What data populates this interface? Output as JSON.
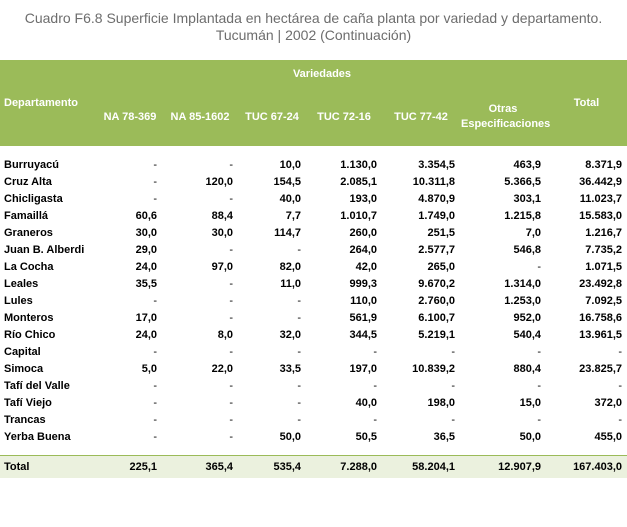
{
  "title_line1": "Cuadro F6.8 Superficie Implantada  en hectárea de caña planta por variedad y departamento.",
  "title_line2": "Tucumán | 2002 (Continuación)",
  "header": {
    "departamento": "Departamento",
    "variedades": "Variedades",
    "columns": [
      "NA 78-369",
      "NA 85-1602",
      "TUC 67-24",
      "TUC 72-16",
      "TUC 77-42",
      "Otras Especificaciones",
      "Total"
    ]
  },
  "rows": [
    {
      "dept": "Burruyacú",
      "v": [
        "-",
        "-",
        "10,0",
        "1.130,0",
        "3.354,5",
        "463,9",
        "8.371,9"
      ]
    },
    {
      "dept": "Cruz Alta",
      "v": [
        "-",
        "120,0",
        "154,5",
        "2.085,1",
        "10.311,8",
        "5.366,5",
        "36.442,9"
      ]
    },
    {
      "dept": "Chicligasta",
      "v": [
        "-",
        "-",
        "40,0",
        "193,0",
        "4.870,9",
        "303,1",
        "11.023,7"
      ]
    },
    {
      "dept": "Famaillá",
      "v": [
        "60,6",
        "88,4",
        "7,7",
        "1.010,7",
        "1.749,0",
        "1.215,8",
        "15.583,0"
      ]
    },
    {
      "dept": "Graneros",
      "v": [
        "30,0",
        "30,0",
        "114,7",
        "260,0",
        "251,5",
        "7,0",
        "1.216,7"
      ]
    },
    {
      "dept": "Juan B. Alberdi",
      "v": [
        "29,0",
        "-",
        "-",
        "264,0",
        "2.577,7",
        "546,8",
        "7.735,2"
      ]
    },
    {
      "dept": "La Cocha",
      "v": [
        "24,0",
        "97,0",
        "82,0",
        "42,0",
        "265,0",
        "-",
        "1.071,5"
      ]
    },
    {
      "dept": "Leales",
      "v": [
        "35,5",
        "-",
        "11,0",
        "999,3",
        "9.670,2",
        "1.314,0",
        "23.492,8"
      ]
    },
    {
      "dept": "Lules",
      "v": [
        "-",
        "-",
        "-",
        "110,0",
        "2.760,0",
        "1.253,0",
        "7.092,5"
      ]
    },
    {
      "dept": "Monteros",
      "v": [
        "17,0",
        "-",
        "-",
        "561,9",
        "6.100,7",
        "952,0",
        "16.758,6"
      ]
    },
    {
      "dept": "Río Chico",
      "v": [
        "24,0",
        "8,0",
        "32,0",
        "344,5",
        "5.219,1",
        "540,4",
        "13.961,5"
      ]
    },
    {
      "dept": "Capital",
      "v": [
        "-",
        "-",
        "-",
        "-",
        "-",
        "-",
        "-"
      ]
    },
    {
      "dept": "Simoca",
      "v": [
        "5,0",
        "22,0",
        "33,5",
        "197,0",
        "10.839,2",
        "880,4",
        "23.825,7"
      ]
    },
    {
      "dept": "Tafí del Valle",
      "v": [
        "-",
        "-",
        "-",
        "-",
        "-",
        "-",
        "-"
      ]
    },
    {
      "dept": "Tafí Viejo",
      "v": [
        "-",
        "-",
        "-",
        "40,0",
        "198,0",
        "15,0",
        "372,0"
      ]
    },
    {
      "dept": "Trancas",
      "v": [
        "-",
        "-",
        "-",
        "-",
        "-",
        "-",
        "-"
      ]
    },
    {
      "dept": "Yerba Buena",
      "v": [
        "-",
        "-",
        "50,0",
        "50,5",
        "36,5",
        "50,0",
        "455,0"
      ]
    }
  ],
  "total": {
    "dept": "Total",
    "v": [
      "225,1",
      "365,4",
      "535,4",
      "7.288,0",
      "58.204,1",
      "12.907,9",
      "167.403,0"
    ]
  },
  "colors": {
    "header_bg": "#9bbb59",
    "total_bg": "#ebf1de",
    "title_text": "#6d6d6d"
  }
}
